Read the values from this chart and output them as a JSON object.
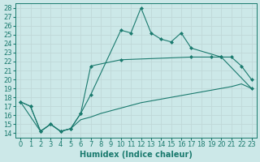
{
  "xlabel": "Humidex (Indice chaleur)",
  "xlim": [
    -0.5,
    23.5
  ],
  "ylim": [
    13.5,
    28.5
  ],
  "xticks": [
    0,
    1,
    2,
    3,
    4,
    5,
    6,
    7,
    8,
    9,
    10,
    11,
    12,
    13,
    14,
    15,
    16,
    17,
    18,
    19,
    20,
    21,
    22,
    23
  ],
  "yticks": [
    14,
    15,
    16,
    17,
    18,
    19,
    20,
    21,
    22,
    23,
    24,
    25,
    26,
    27,
    28
  ],
  "line_color": "#1a7a6e",
  "bg_color": "#cce8e8",
  "grid_color": "#b0d0d0",
  "font_size": 6,
  "marker_style": "D",
  "marker_size": 2.5,
  "line1_x": [
    0,
    1,
    2,
    3,
    4,
    5,
    6,
    7,
    10,
    11,
    12,
    13,
    14,
    15,
    16,
    17,
    20,
    21,
    22,
    23
  ],
  "line1_y": [
    17.5,
    17.0,
    14.2,
    15.0,
    14.2,
    14.5,
    16.2,
    18.3,
    25.5,
    25.2,
    28.0,
    25.2,
    24.5,
    24.2,
    25.2,
    23.5,
    22.5,
    22.5,
    21.5,
    20.0
  ],
  "line2_x": [
    0,
    1,
    2,
    3,
    4,
    5,
    6,
    7,
    10,
    17,
    19,
    20,
    23
  ],
  "line2_y": [
    17.5,
    17.0,
    14.2,
    15.0,
    14.2,
    14.5,
    16.2,
    21.5,
    22.2,
    22.5,
    22.5,
    22.5,
    19.0
  ],
  "line3_x": [
    0,
    2,
    3,
    4,
    5,
    6,
    7,
    8,
    9,
    10,
    11,
    12,
    13,
    14,
    15,
    16,
    17,
    18,
    19,
    20,
    21,
    22,
    23
  ],
  "line3_y": [
    17.5,
    14.2,
    15.0,
    14.2,
    14.5,
    15.5,
    15.8,
    16.2,
    16.5,
    16.8,
    17.1,
    17.4,
    17.6,
    17.8,
    18.0,
    18.2,
    18.4,
    18.6,
    18.8,
    19.0,
    19.2,
    19.5,
    19.0
  ]
}
